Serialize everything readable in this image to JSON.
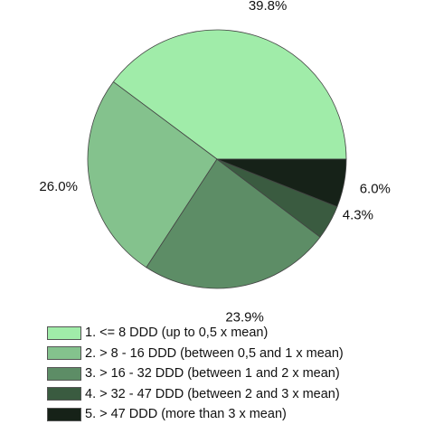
{
  "chart_data": {
    "type": "pie",
    "title": "",
    "start_angle_deg": 0,
    "direction": "counterclockwise",
    "slices": [
      {
        "label": "1. <= 8 DDD (up to 0,5 x mean)",
        "value": 39.8,
        "display": "39.8%",
        "color": "#a0eca9"
      },
      {
        "label": "2. > 8 - 16 DDD (between 0,5 and 1 x mean)",
        "value": 26.0,
        "display": "26.0%",
        "color": "#84c28d"
      },
      {
        "label": "3. > 16 - 32 DDD (between 1 and 2 x mean)",
        "value": 23.9,
        "display": "23.9%",
        "color": "#5d8d66"
      },
      {
        "label": "4. > 32 - 47 DDD (between 2 and 3 x mean)",
        "value": 4.3,
        "display": "4.3%",
        "color": "#3a5b40"
      },
      {
        "label": "5. > 47 DDD (more than 3 x mean)",
        "value": 6.0,
        "display": "6.0%",
        "color": "#162218"
      }
    ],
    "legend": {
      "position": "bottom"
    }
  }
}
